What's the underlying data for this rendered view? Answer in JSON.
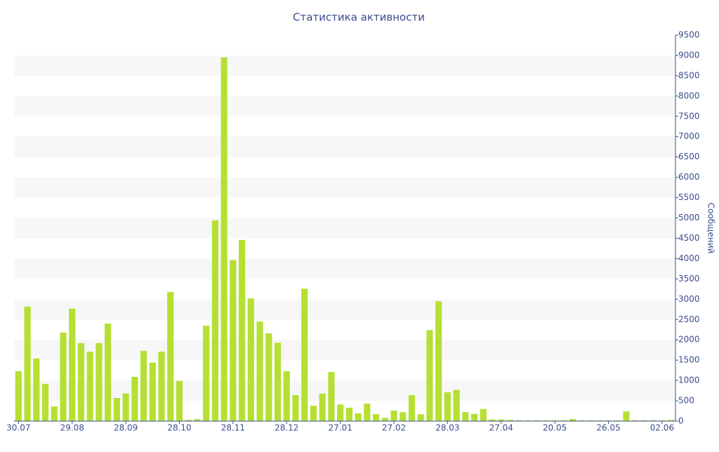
{
  "chart_data": {
    "type": "bar",
    "title": "Статистика активности",
    "y_label": "Сообщений",
    "categories": [
      "30.07",
      null,
      null,
      null,
      null,
      null,
      "29.08",
      null,
      null,
      null,
      null,
      null,
      "28.09",
      null,
      null,
      null,
      null,
      null,
      "28.10",
      null,
      null,
      null,
      null,
      null,
      "28.11",
      null,
      null,
      null,
      null,
      null,
      "28.12",
      null,
      null,
      null,
      null,
      null,
      "27.01",
      null,
      null,
      null,
      null,
      null,
      "27.02",
      null,
      null,
      null,
      null,
      null,
      "28.03",
      null,
      null,
      null,
      null,
      null,
      "27.04",
      null,
      null,
      null,
      null,
      null,
      "20.05",
      null,
      null,
      null,
      null,
      null,
      "26.05",
      null,
      null,
      null,
      null,
      null,
      "02.06",
      null
    ],
    "values": [
      1230,
      2820,
      1540,
      920,
      360,
      2180,
      2770,
      1920,
      1710,
      1920,
      2400,
      570,
      680,
      1090,
      1730,
      1440,
      1710,
      3180,
      990,
      30,
      50,
      2350,
      4940,
      8950,
      3960,
      4460,
      3020,
      2450,
      2160,
      1930,
      1230,
      640,
      3260,
      380,
      680,
      1210,
      410,
      330,
      190,
      430,
      170,
      80,
      260,
      220,
      640,
      170,
      2240,
      2950,
      710,
      770,
      220,
      180,
      300,
      40,
      40,
      30,
      20,
      20,
      20,
      20,
      20,
      20,
      50,
      20,
      20,
      20,
      20,
      20,
      240,
      20,
      20,
      20,
      20,
      30
    ],
    "color": "#b5e033",
    "ylim": [
      0,
      9500
    ],
    "yticks": [
      0,
      500,
      1000,
      1500,
      2000,
      2500,
      3000,
      3500,
      4000,
      4500,
      5000,
      5500,
      6000,
      6500,
      7000,
      7500,
      8000,
      8500,
      9000,
      9500
    ],
    "grid": "alternate-bands",
    "y_axis_side": "right"
  }
}
